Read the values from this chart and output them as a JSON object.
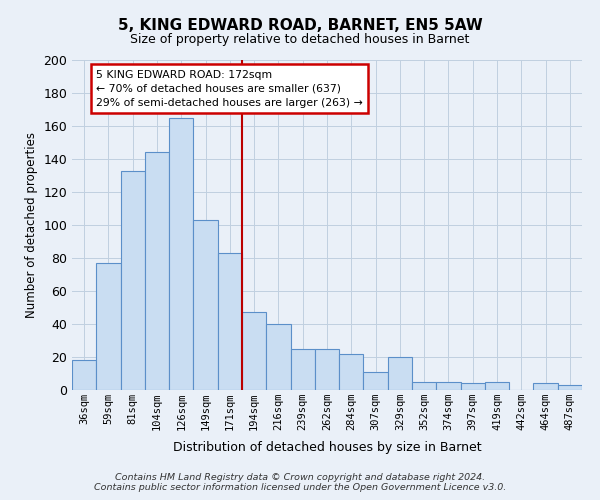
{
  "title": "5, KING EDWARD ROAD, BARNET, EN5 5AW",
  "subtitle": "Size of property relative to detached houses in Barnet",
  "xlabel": "Distribution of detached houses by size in Barnet",
  "ylabel": "Number of detached properties",
  "bin_labels": [
    "36sqm",
    "59sqm",
    "81sqm",
    "104sqm",
    "126sqm",
    "149sqm",
    "171sqm",
    "194sqm",
    "216sqm",
    "239sqm",
    "262sqm",
    "284sqm",
    "307sqm",
    "329sqm",
    "352sqm",
    "374sqm",
    "397sqm",
    "419sqm",
    "442sqm",
    "464sqm",
    "487sqm"
  ],
  "bar_values": [
    18,
    77,
    133,
    144,
    165,
    103,
    83,
    47,
    40,
    25,
    25,
    22,
    11,
    20,
    5,
    5,
    4,
    5,
    0,
    4,
    3
  ],
  "bar_color": "#c9ddf2",
  "bar_edge_color": "#5b8fc9",
  "grid_color": "#c0cfe0",
  "background_color": "#eaf0f8",
  "vline_color": "#bb0000",
  "vline_x": 6.5,
  "annotation_text": "5 KING EDWARD ROAD: 172sqm\n← 70% of detached houses are smaller (637)\n29% of semi-detached houses are larger (263) →",
  "annotation_box_facecolor": "#ffffff",
  "annotation_box_edgecolor": "#cc0000",
  "ylim": [
    0,
    200
  ],
  "yticks": [
    0,
    20,
    40,
    60,
    80,
    100,
    120,
    140,
    160,
    180,
    200
  ],
  "footer_line1": "Contains HM Land Registry data © Crown copyright and database right 2024.",
  "footer_line2": "Contains public sector information licensed under the Open Government Licence v3.0."
}
